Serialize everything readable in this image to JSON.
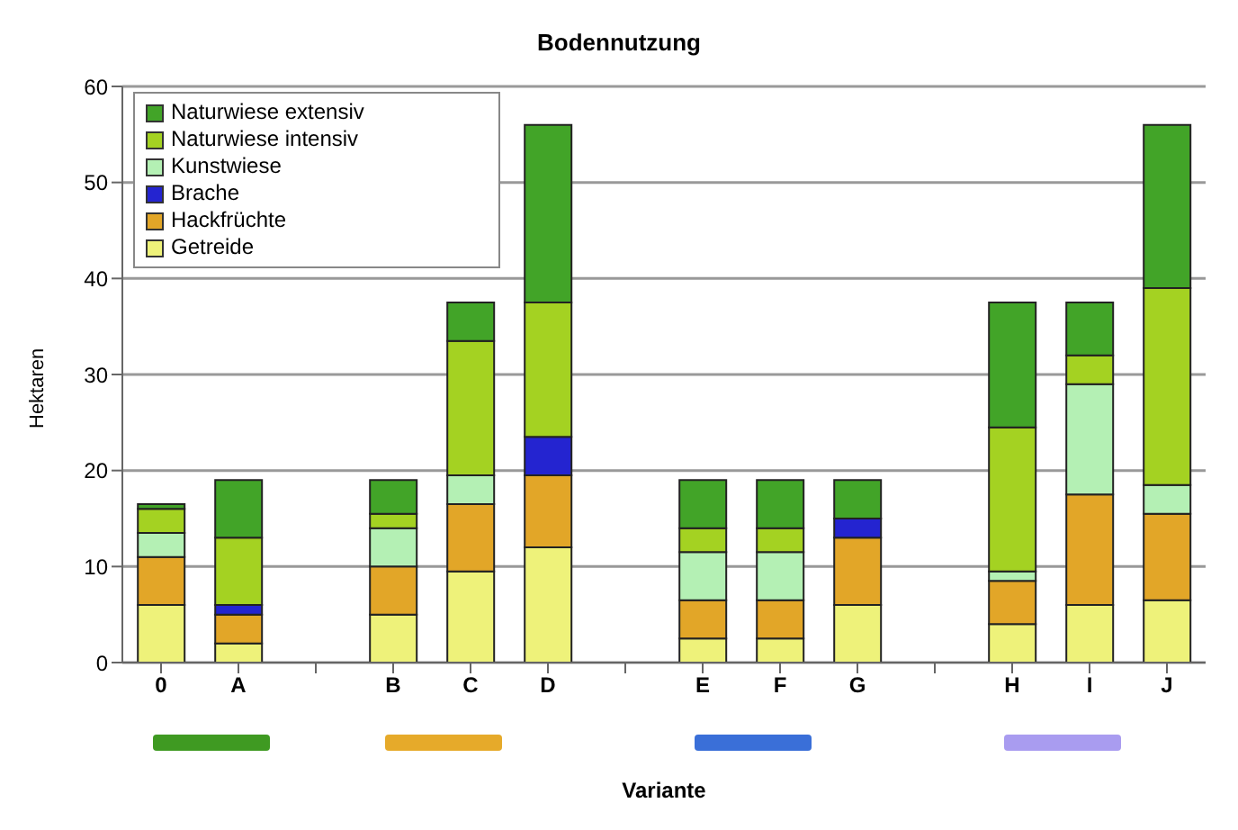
{
  "chart_data": {
    "type": "bar",
    "title": "Bodennutzung",
    "xlabel": "Variante",
    "ylabel": "Hektaren",
    "categories": [
      "0",
      "A",
      null,
      "B",
      "C",
      "D",
      null,
      "E",
      "F",
      "G",
      null,
      "H",
      "I",
      "J"
    ],
    "stacked": true,
    "ylim": [
      0,
      60
    ],
    "yticks": [
      0,
      10,
      20,
      30,
      40,
      50,
      60
    ],
    "grid": "y",
    "legend": "top left",
    "series": [
      {
        "name": "Getreide",
        "color": "#eef27a",
        "values": [
          6,
          2,
          null,
          5,
          9.5,
          12,
          null,
          2.5,
          2.5,
          6,
          null,
          4,
          6,
          6.5
        ]
      },
      {
        "name": "Hackfrüchte",
        "color": "#e2a628",
        "values": [
          5,
          3,
          null,
          5,
          7,
          7.5,
          null,
          4,
          4,
          7,
          null,
          4.5,
          11.5,
          9
        ]
      },
      {
        "name": "Brache",
        "color": "#2424d0",
        "values": [
          0,
          1,
          null,
          0,
          0,
          4,
          null,
          0,
          0,
          2,
          null,
          0,
          0,
          0
        ]
      },
      {
        "name": "Kunstwiese",
        "color": "#b4f0b4",
        "values": [
          2.5,
          0,
          null,
          4,
          3,
          0,
          null,
          5,
          5,
          0,
          null,
          1,
          11.5,
          3
        ]
      },
      {
        "name": "Naturwiese intensiv",
        "color": "#a4d222",
        "values": [
          2.5,
          7,
          null,
          1.5,
          14,
          14,
          null,
          2.5,
          2.5,
          0,
          null,
          15,
          3,
          20.5
        ]
      },
      {
        "name": "Naturwiese extensiv",
        "color": "#42a428",
        "values": [
          0.5,
          6,
          null,
          3.5,
          4,
          18.5,
          null,
          5,
          5,
          4,
          null,
          13,
          5.5,
          17
        ]
      }
    ]
  }
}
